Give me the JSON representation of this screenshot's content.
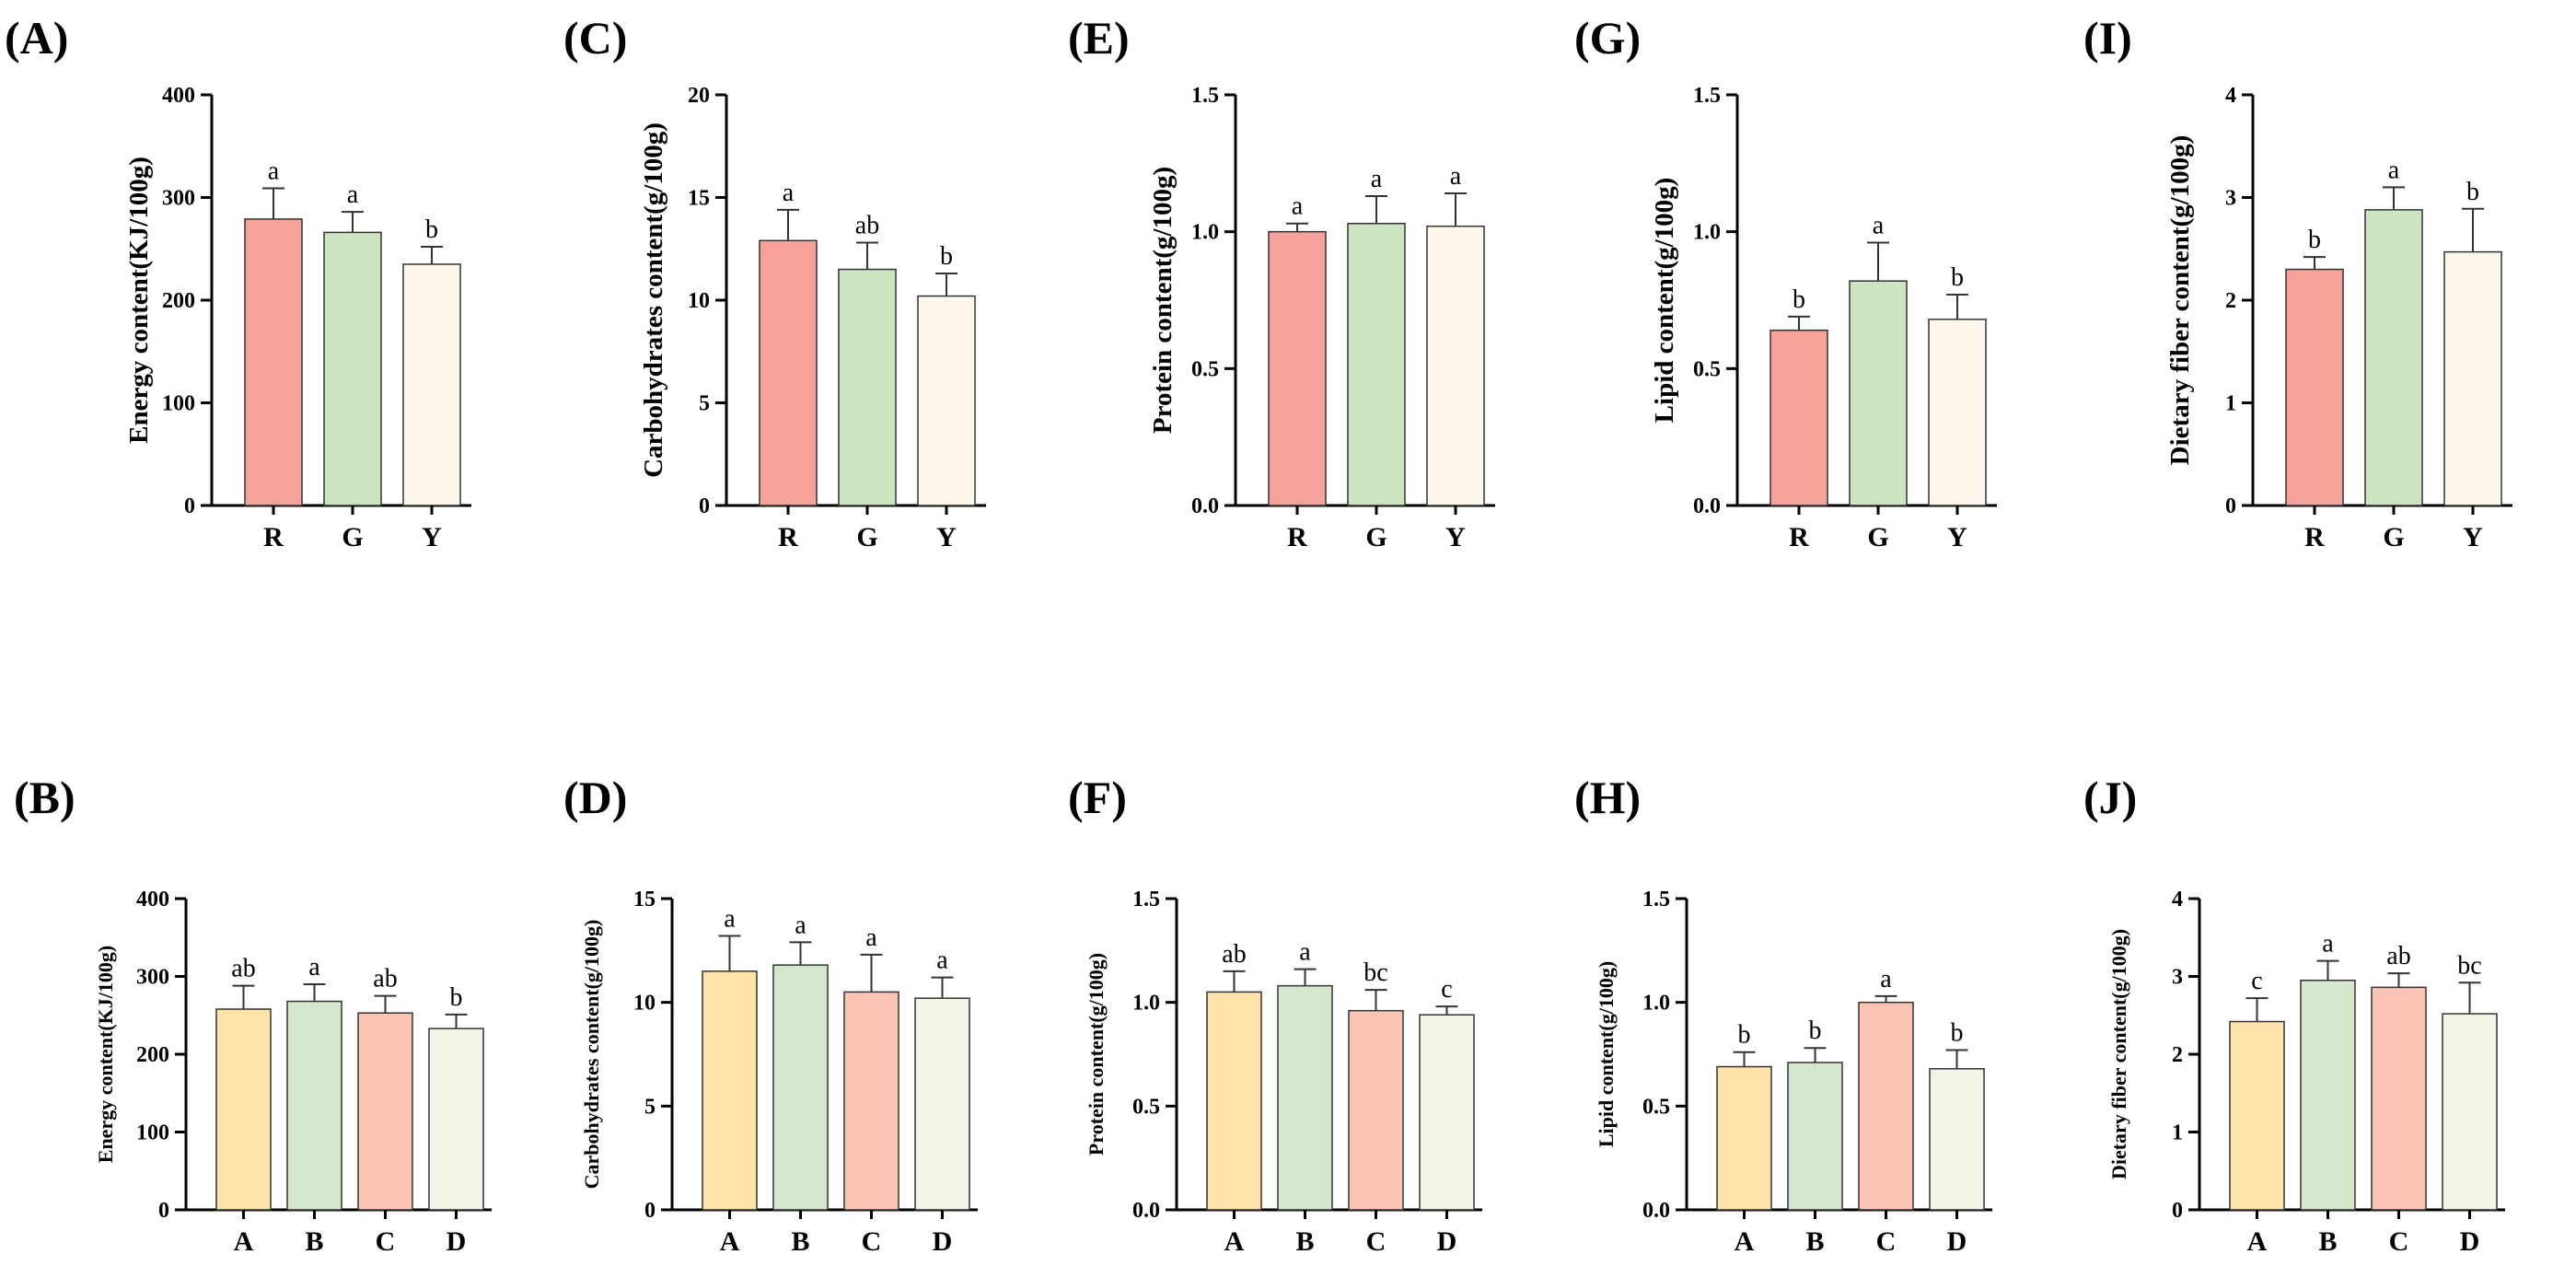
{
  "colors": {
    "R": "#F4A29A",
    "G": "#CDE4C0",
    "Y": "#FEF8EC",
    "A": "#FDE3A9",
    "B": "#D4E7CC",
    "C": "#FBC4B4",
    "D": "#F1F5E6",
    "axis": "#000000"
  },
  "chart_data": [
    {
      "panel": "(A)",
      "type": "bar",
      "ylabel": "Energy content(KJ/100g)",
      "ylim": [
        0,
        400
      ],
      "yticks": [
        "0",
        "100",
        "200",
        "300",
        "400"
      ],
      "categories": [
        "R",
        "G",
        "Y"
      ],
      "values": [
        279,
        266,
        235
      ],
      "errors": [
        30,
        20,
        17
      ],
      "letters": [
        "a",
        "a",
        "b"
      ]
    },
    {
      "panel": "(C)",
      "type": "bar",
      "ylabel": "Carbohydrates content(g/100g)",
      "ylim": [
        0,
        20
      ],
      "yticks": [
        "0",
        "5",
        "10",
        "15",
        "20"
      ],
      "categories": [
        "R",
        "G",
        "Y"
      ],
      "values": [
        12.9,
        11.5,
        10.2
      ],
      "errors": [
        1.5,
        1.3,
        1.1
      ],
      "letters": [
        "a",
        "ab",
        "b"
      ]
    },
    {
      "panel": "(E)",
      "type": "bar",
      "ylabel": "Protein content(g/100g)",
      "ylim": [
        0,
        1.5
      ],
      "yticks": [
        "0.0",
        "0.5",
        "1.0",
        "1.5"
      ],
      "categories": [
        "R",
        "G",
        "Y"
      ],
      "values": [
        1.0,
        1.03,
        1.02
      ],
      "errors": [
        0.03,
        0.1,
        0.12
      ],
      "letters": [
        "a",
        "a",
        "a"
      ]
    },
    {
      "panel": "(G)",
      "type": "bar",
      "ylabel": "Lipid content(g/100g)",
      "ylim": [
        0,
        1.5
      ],
      "yticks": [
        "0.0",
        "0.5",
        "1.0",
        "1.5"
      ],
      "categories": [
        "R",
        "G",
        "Y"
      ],
      "values": [
        0.64,
        0.82,
        0.68
      ],
      "errors": [
        0.05,
        0.14,
        0.09
      ],
      "letters": [
        "b",
        "a",
        "b"
      ]
    },
    {
      "panel": "(I)",
      "type": "bar",
      "ylabel": "Dietary fiber content(g/100g)",
      "ylim": [
        0,
        4
      ],
      "yticks": [
        "0",
        "1",
        "2",
        "3",
        "4"
      ],
      "categories": [
        "R",
        "G",
        "Y"
      ],
      "values": [
        2.3,
        2.88,
        2.47
      ],
      "errors": [
        0.12,
        0.22,
        0.42
      ],
      "letters": [
        "b",
        "a",
        "b"
      ]
    },
    {
      "panel": "(B)",
      "type": "bar",
      "ylabel": "Energy content(KJ/100g)",
      "ylim": [
        0,
        400
      ],
      "yticks": [
        "0",
        "100",
        "200",
        "300",
        "400"
      ],
      "categories": [
        "A",
        "B",
        "C",
        "D"
      ],
      "values": [
        258,
        268,
        253,
        233
      ],
      "errors": [
        30,
        22,
        22,
        18
      ],
      "letters": [
        "ab",
        "a",
        "ab",
        "b"
      ]
    },
    {
      "panel": "(D)",
      "type": "bar",
      "ylabel": "Carbohydrates content(g/100g)",
      "ylim": [
        0,
        15
      ],
      "yticks": [
        "0",
        "5",
        "10",
        "15"
      ],
      "categories": [
        "A",
        "B",
        "C",
        "D"
      ],
      "values": [
        11.5,
        11.8,
        10.5,
        10.2
      ],
      "errors": [
        1.7,
        1.1,
        1.8,
        1.0
      ],
      "letters": [
        "a",
        "a",
        "a",
        "a"
      ]
    },
    {
      "panel": "(F)",
      "type": "bar",
      "ylabel": "Protein content(g/100g)",
      "ylim": [
        0,
        1.5
      ],
      "yticks": [
        "0.0",
        "0.5",
        "1.0",
        "1.5"
      ],
      "categories": [
        "A",
        "B",
        "C",
        "D"
      ],
      "values": [
        1.05,
        1.08,
        0.96,
        0.94
      ],
      "errors": [
        0.1,
        0.08,
        0.1,
        0.04
      ],
      "letters": [
        "ab",
        "a",
        "bc",
        "c"
      ]
    },
    {
      "panel": "(H)",
      "type": "bar",
      "ylabel": "Lipid content(g/100g)",
      "ylim": [
        0,
        1.5
      ],
      "yticks": [
        "0.0",
        "0.5",
        "1.0",
        "1.5"
      ],
      "categories": [
        "A",
        "B",
        "C",
        "D"
      ],
      "values": [
        0.69,
        0.71,
        1.0,
        0.68
      ],
      "errors": [
        0.07,
        0.07,
        0.03,
        0.09
      ],
      "letters": [
        "b",
        "b",
        "a",
        "b"
      ]
    },
    {
      "panel": "(J)",
      "type": "bar",
      "ylabel": "Dietary fiber content(g/100g)",
      "ylim": [
        0,
        4
      ],
      "yticks": [
        "0",
        "1",
        "2",
        "3",
        "4"
      ],
      "categories": [
        "A",
        "B",
        "C",
        "D"
      ],
      "values": [
        2.42,
        2.95,
        2.86,
        2.52
      ],
      "errors": [
        0.3,
        0.25,
        0.18,
        0.4
      ],
      "letters": [
        "c",
        "a",
        "ab",
        "bc"
      ]
    }
  ]
}
